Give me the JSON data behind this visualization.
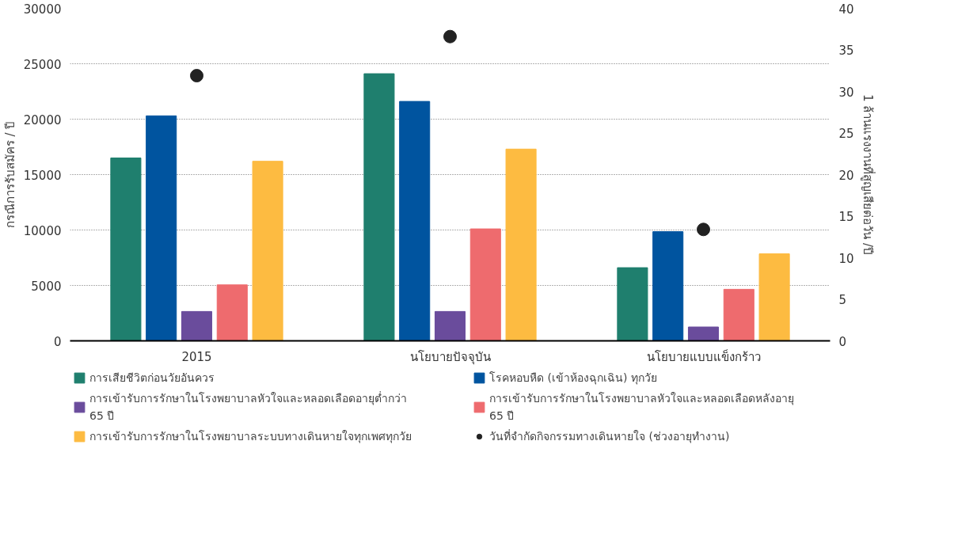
{
  "chart_data": {
    "type": "bar",
    "ylabel": "กรณีการรับสมัคร / ปี",
    "y2label": "1 ล้านแรงงานที่สูญเสียต่อวัน /ปี",
    "categories": [
      "2015",
      "นโยบายปัจจุบัน",
      "นโยบายแบบแข็งกร้าว"
    ],
    "series": [
      {
        "name": "การเสียชีวิตก่อนวัยอันควร",
        "color": "#1f7f6e",
        "values": [
          16500,
          24100,
          6600
        ]
      },
      {
        "name": "โรคหอบหืด (เข้าห้องฉุกเฉิน) ทุกวัย",
        "color": "#00549f",
        "values": [
          20300,
          21600,
          9850
        ]
      },
      {
        "name": "การเข้ารับการรักษาในโรงพยาบาลหัวใจและหลอดเลือดอายุต่ำกว่า 65 ปี",
        "color": "#6a4c9c",
        "values": [
          2650,
          2650,
          1250
        ]
      },
      {
        "name": "การเข้ารับการรักษาในโรงพยาบาลหัวใจและหลอดเลือดหลังอายุ 65 ปี",
        "color": "#ee6b6e",
        "values": [
          5050,
          10100,
          4650
        ]
      },
      {
        "name": "การเข้ารับการรักษาในโรงพยาบาลระบบทางเดินหายใจทุกเพศทุกวัย",
        "color": "#fdbb41",
        "values": [
          16200,
          17300,
          7850
        ]
      },
      {
        "name": "วันที่จำกัดกิจกรรมทางเดินหายใจ (ช่วงอายุทำงาน)",
        "color": "#222222",
        "type": "scatter",
        "axis": "y2",
        "marker": "circle",
        "values": [
          31.9,
          36.6,
          13.4
        ]
      }
    ],
    "ylim": [
      0,
      30000
    ],
    "yticks": [
      0,
      5000,
      10000,
      15000,
      20000,
      25000,
      30000
    ],
    "y2lim": [
      0,
      40
    ],
    "y2ticks": [
      0,
      5,
      10,
      15,
      20,
      25,
      30,
      35,
      40
    ],
    "grid": "y",
    "legend": "bottom"
  }
}
